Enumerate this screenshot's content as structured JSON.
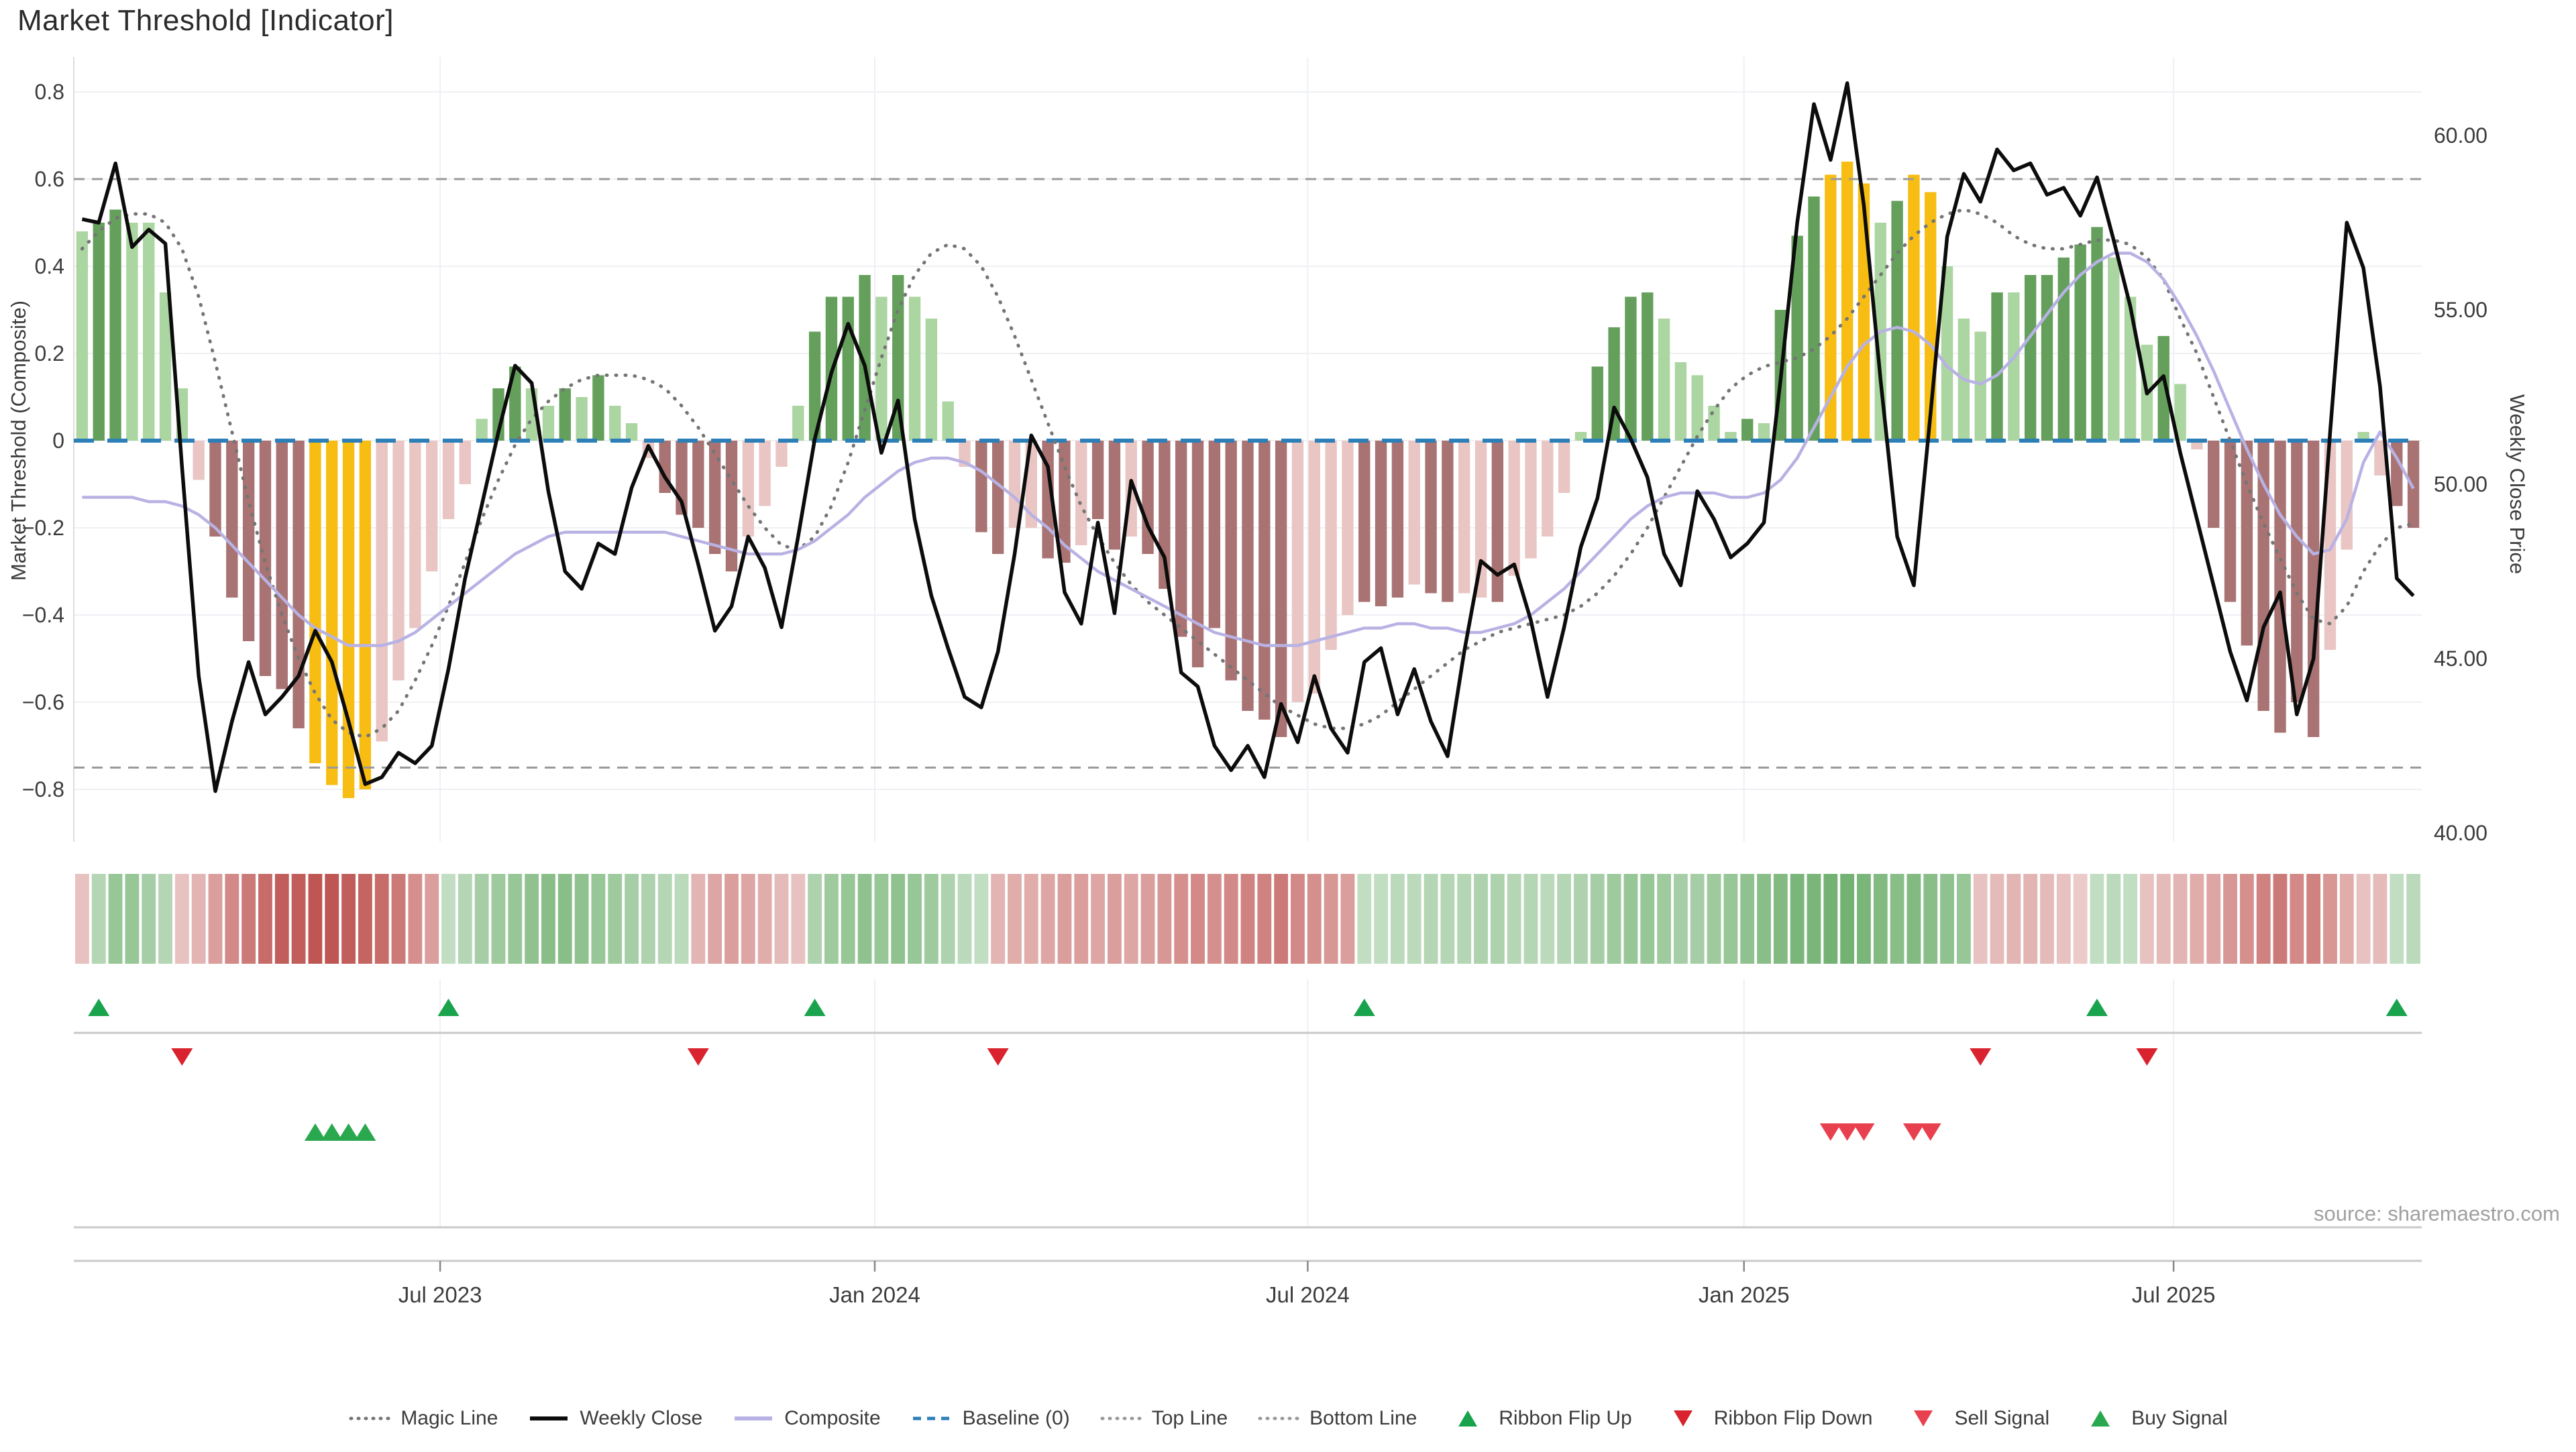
{
  "page": {
    "title": "Market Threshold [Indicator]",
    "source": "source: sharemaestro.com"
  },
  "chart_data": {
    "type": "bar",
    "title": "Market Threshold [Indicator]",
    "xlabel": "",
    "ylabel_left": "Market Threshold (Composite)",
    "ylabel_right": "Weekly Close Price",
    "grid": true,
    "legend_position": "bottom-center",
    "left_axis": {
      "ticks": [
        "0.8",
        "0.6",
        "0.4",
        "0.2",
        "0",
        "−0.2",
        "−0.4",
        "−0.6",
        "−0.8"
      ],
      "tick_values": [
        0.8,
        0.6,
        0.4,
        0.2,
        0,
        -0.2,
        -0.4,
        -0.6,
        -0.8
      ],
      "range": [
        -0.92,
        0.88
      ]
    },
    "right_axis": {
      "ticks": [
        "60.00",
        "55.00",
        "50.00",
        "45.00",
        "40.00"
      ],
      "tick_values": [
        60,
        55,
        50,
        45,
        40
      ],
      "price_at_zero_composite": 51.25,
      "price_per_composite_unit": 12.5
    },
    "x_axis": {
      "tick_labels": [
        "Jul 2023",
        "Jan 2024",
        "Jul 2024",
        "Jan 2025",
        "Jul 2025"
      ],
      "tick_week_positions": [
        21.5,
        47.6,
        73.6,
        99.8,
        125.6
      ]
    },
    "reference_lines": {
      "baseline": 0,
      "top_line": 0.6,
      "bottom_line": -0.75
    },
    "weeks": 141,
    "series": [
      {
        "name": "Composite Bars",
        "type": "bar",
        "values": [
          0.48,
          0.5,
          0.53,
          0.5,
          0.5,
          0.34,
          0.12,
          -0.09,
          -0.22,
          -0.36,
          -0.46,
          -0.54,
          -0.57,
          -0.66,
          -0.74,
          -0.79,
          -0.82,
          -0.8,
          -0.69,
          -0.55,
          -0.43,
          -0.3,
          -0.18,
          -0.1,
          0.05,
          0.12,
          0.17,
          0.12,
          0.08,
          0.12,
          0.1,
          0.15,
          0.08,
          0.04,
          -0.04,
          -0.12,
          -0.17,
          -0.2,
          -0.26,
          -0.3,
          -0.22,
          -0.15,
          -0.06,
          0.08,
          0.25,
          0.33,
          0.33,
          0.38,
          0.33,
          0.38,
          0.33,
          0.28,
          0.09,
          -0.06,
          -0.21,
          -0.26,
          -0.2,
          -0.2,
          -0.27,
          -0.28,
          -0.24,
          -0.18,
          -0.25,
          -0.22,
          -0.26,
          -0.34,
          -0.45,
          -0.52,
          -0.43,
          -0.55,
          -0.62,
          -0.64,
          -0.68,
          -0.6,
          -0.58,
          -0.48,
          -0.4,
          -0.37,
          -0.38,
          -0.36,
          -0.33,
          -0.35,
          -0.37,
          -0.35,
          -0.36,
          -0.37,
          -0.31,
          -0.27,
          -0.22,
          -0.12,
          0.02,
          0.17,
          0.26,
          0.33,
          0.34,
          0.28,
          0.18,
          0.15,
          0.08,
          0.02,
          0.05,
          0.04,
          0.3,
          0.47,
          0.56,
          0.61,
          0.64,
          0.59,
          0.5,
          0.55,
          0.61,
          0.57,
          0.4,
          0.28,
          0.25,
          0.34,
          0.34,
          0.38,
          0.38,
          0.42,
          0.45,
          0.49,
          0.42,
          0.33,
          0.22,
          0.24,
          0.13,
          -0.02,
          -0.2,
          -0.37,
          -0.47,
          -0.62,
          -0.67,
          -0.6,
          -0.68,
          -0.48,
          -0.25,
          0.02,
          -0.08,
          -0.15,
          -0.2
        ],
        "color_keys": [
          "lg",
          "dg",
          "dg",
          "lg",
          "lg",
          "lg",
          "lg",
          "lp",
          "dr",
          "dr",
          "dr",
          "dr",
          "dr",
          "dr",
          "Y",
          "Y",
          "Y",
          "Y",
          "lp",
          "lp",
          "lp",
          "lp",
          "lp",
          "lp",
          "lg",
          "dg",
          "dg",
          "lg",
          "lg",
          "dg",
          "lg",
          "dg",
          "lg",
          "lg",
          "lp",
          "dr",
          "dr",
          "dr",
          "dr",
          "dr",
          "lp",
          "lp",
          "lp",
          "lg",
          "dg",
          "dg",
          "dg",
          "dg",
          "lg",
          "dg",
          "lg",
          "lg",
          "lg",
          "lp",
          "dr",
          "dr",
          "lp",
          "lp",
          "dr",
          "dr",
          "lp",
          "dr",
          "dr",
          "lp",
          "dr",
          "dr",
          "dr",
          "dr",
          "dr",
          "dr",
          "dr",
          "dr",
          "dr",
          "lp",
          "lp",
          "lp",
          "lp",
          "dr",
          "dr",
          "dr",
          "lp",
          "dr",
          "dr",
          "lp",
          "lp",
          "dr",
          "lp",
          "lp",
          "lp",
          "lp",
          "lg",
          "dg",
          "dg",
          "dg",
          "dg",
          "lg",
          "lg",
          "lg",
          "lg",
          "lg",
          "dg",
          "lg",
          "dg",
          "dg",
          "dg",
          "Y",
          "Y",
          "Y",
          "lg",
          "dg",
          "Y",
          "Y",
          "lg",
          "lg",
          "lg",
          "dg",
          "lg",
          "dg",
          "dg",
          "dg",
          "dg",
          "dg",
          "lg",
          "lg",
          "lg",
          "dg",
          "lg",
          "lp",
          "dr",
          "dr",
          "dr",
          "dr",
          "dr",
          "dr",
          "dr",
          "lp",
          "lp",
          "lg",
          "lp",
          "dr",
          "dr"
        ]
      },
      {
        "name": "Weekly Close",
        "type": "line",
        "axis": "price",
        "values": [
          57.6,
          57.5,
          59.2,
          56.8,
          57.3,
          56.9,
          50.5,
          44.5,
          41.2,
          43.2,
          44.9,
          43.4,
          43.9,
          44.5,
          45.8,
          44.9,
          43.2,
          41.4,
          41.6,
          42.3,
          42.0,
          42.5,
          44.7,
          47.3,
          49.4,
          51.5,
          53.4,
          52.9,
          49.8,
          47.5,
          47.0,
          48.3,
          48.0,
          49.9,
          51.1,
          50.2,
          49.5,
          47.7,
          45.8,
          46.5,
          48.5,
          47.6,
          45.9,
          48.5,
          51.3,
          53.2,
          54.6,
          53.4,
          50.9,
          52.4,
          49.0,
          46.8,
          45.3,
          43.9,
          43.6,
          45.2,
          48.0,
          51.4,
          50.5,
          46.9,
          46.0,
          48.9,
          46.3,
          50.1,
          48.8,
          47.9,
          44.6,
          44.2,
          42.5,
          41.8,
          42.5,
          41.6,
          43.7,
          42.6,
          44.5,
          43.0,
          42.3,
          44.9,
          45.3,
          43.4,
          44.7,
          43.2,
          42.2,
          45.2,
          47.8,
          47.4,
          47.7,
          46.1,
          43.9,
          45.9,
          48.2,
          49.6,
          52.2,
          51.3,
          50.2,
          48.0,
          47.1,
          49.8,
          49.0,
          47.9,
          48.3,
          48.9,
          53.0,
          57.5,
          60.9,
          59.3,
          61.5,
          58.0,
          53.0,
          48.5,
          47.1,
          52.0,
          57.1,
          58.9,
          58.1,
          59.6,
          59.0,
          59.2,
          58.3,
          58.5,
          57.7,
          58.8,
          57.0,
          55.1,
          52.6,
          53.1,
          50.9,
          49.0,
          47.1,
          45.2,
          43.8,
          45.9,
          46.9,
          43.4,
          45.0,
          51.5,
          57.5,
          56.2,
          52.8,
          47.3,
          46.8
        ]
      },
      {
        "name": "Composite",
        "type": "line",
        "values": [
          -0.13,
          -0.13,
          -0.13,
          -0.13,
          -0.14,
          -0.14,
          -0.15,
          -0.17,
          -0.2,
          -0.24,
          -0.28,
          -0.32,
          -0.36,
          -0.4,
          -0.43,
          -0.45,
          -0.47,
          -0.47,
          -0.47,
          -0.46,
          -0.44,
          -0.41,
          -0.38,
          -0.35,
          -0.32,
          -0.29,
          -0.26,
          -0.24,
          -0.22,
          -0.21,
          -0.21,
          -0.21,
          -0.21,
          -0.21,
          -0.21,
          -0.21,
          -0.22,
          -0.23,
          -0.24,
          -0.25,
          -0.26,
          -0.26,
          -0.26,
          -0.25,
          -0.23,
          -0.2,
          -0.17,
          -0.13,
          -0.1,
          -0.07,
          -0.05,
          -0.04,
          -0.04,
          -0.05,
          -0.07,
          -0.1,
          -0.13,
          -0.17,
          -0.2,
          -0.24,
          -0.27,
          -0.3,
          -0.32,
          -0.34,
          -0.36,
          -0.38,
          -0.4,
          -0.42,
          -0.44,
          -0.45,
          -0.46,
          -0.47,
          -0.47,
          -0.47,
          -0.46,
          -0.45,
          -0.44,
          -0.43,
          -0.43,
          -0.42,
          -0.42,
          -0.43,
          -0.43,
          -0.44,
          -0.44,
          -0.43,
          -0.42,
          -0.4,
          -0.37,
          -0.34,
          -0.3,
          -0.26,
          -0.22,
          -0.18,
          -0.15,
          -0.13,
          -0.12,
          -0.12,
          -0.12,
          -0.13,
          -0.13,
          -0.12,
          -0.09,
          -0.04,
          0.03,
          0.1,
          0.17,
          0.22,
          0.25,
          0.26,
          0.25,
          0.22,
          0.17,
          0.14,
          0.13,
          0.15,
          0.19,
          0.24,
          0.29,
          0.34,
          0.38,
          0.41,
          0.43,
          0.43,
          0.41,
          0.37,
          0.31,
          0.24,
          0.16,
          0.07,
          -0.02,
          -0.1,
          -0.17,
          -0.22,
          -0.26,
          -0.25,
          -0.18,
          -0.05,
          0.02,
          -0.04,
          -0.11
        ]
      },
      {
        "name": "Magic Line",
        "type": "line",
        "style": "dotted",
        "values": [
          0.44,
          0.48,
          0.51,
          0.52,
          0.52,
          0.5,
          0.44,
          0.33,
          0.18,
          0.02,
          -0.14,
          -0.28,
          -0.4,
          -0.5,
          -0.58,
          -0.64,
          -0.67,
          -0.68,
          -0.66,
          -0.62,
          -0.55,
          -0.47,
          -0.38,
          -0.28,
          -0.18,
          -0.09,
          -0.01,
          0.05,
          0.09,
          0.12,
          0.14,
          0.15,
          0.15,
          0.15,
          0.14,
          0.12,
          0.08,
          0.03,
          -0.03,
          -0.09,
          -0.15,
          -0.2,
          -0.24,
          -0.25,
          -0.22,
          -0.15,
          -0.05,
          0.07,
          0.19,
          0.3,
          0.38,
          0.43,
          0.45,
          0.44,
          0.4,
          0.33,
          0.24,
          0.14,
          0.04,
          -0.06,
          -0.15,
          -0.22,
          -0.28,
          -0.33,
          -0.37,
          -0.4,
          -0.43,
          -0.46,
          -0.49,
          -0.52,
          -0.55,
          -0.58,
          -0.61,
          -0.63,
          -0.65,
          -0.66,
          -0.66,
          -0.65,
          -0.63,
          -0.6,
          -0.57,
          -0.54,
          -0.51,
          -0.48,
          -0.46,
          -0.44,
          -0.43,
          -0.42,
          -0.41,
          -0.4,
          -0.38,
          -0.35,
          -0.31,
          -0.26,
          -0.2,
          -0.13,
          -0.06,
          0.01,
          0.07,
          0.12,
          0.15,
          0.17,
          0.18,
          0.19,
          0.21,
          0.24,
          0.28,
          0.33,
          0.38,
          0.43,
          0.47,
          0.5,
          0.52,
          0.53,
          0.52,
          0.5,
          0.47,
          0.45,
          0.44,
          0.44,
          0.45,
          0.46,
          0.46,
          0.45,
          0.42,
          0.37,
          0.28,
          0.2,
          0.1,
          0.0,
          -0.1,
          -0.19,
          -0.27,
          -0.35,
          -0.41,
          -0.42,
          -0.38,
          -0.3,
          -0.24,
          -0.2,
          -0.19
        ]
      }
    ],
    "ribbon": {
      "values": [
        -0.2,
        0.3,
        0.5,
        0.5,
        0.4,
        0.3,
        -0.2,
        -0.3,
        -0.45,
        -0.6,
        -0.7,
        -0.8,
        -0.9,
        -0.9,
        -0.95,
        -0.95,
        -0.9,
        -0.85,
        -0.8,
        -0.7,
        -0.55,
        -0.45,
        0.2,
        0.3,
        0.4,
        0.45,
        0.5,
        0.55,
        0.6,
        0.6,
        0.55,
        0.5,
        0.45,
        0.4,
        0.35,
        0.3,
        0.25,
        -0.3,
        -0.4,
        -0.45,
        -0.4,
        -0.35,
        -0.25,
        -0.2,
        0.35,
        0.45,
        0.5,
        0.55,
        0.5,
        0.55,
        0.5,
        0.45,
        0.35,
        0.25,
        0.2,
        -0.3,
        -0.35,
        -0.35,
        -0.4,
        -0.45,
        -0.45,
        -0.4,
        -0.45,
        -0.4,
        -0.45,
        -0.5,
        -0.55,
        -0.6,
        -0.55,
        -0.6,
        -0.65,
        -0.65,
        -0.7,
        -0.6,
        -0.55,
        -0.5,
        -0.45,
        0.2,
        0.2,
        0.25,
        0.25,
        0.3,
        0.3,
        0.3,
        0.35,
        0.35,
        0.3,
        0.3,
        0.25,
        0.3,
        0.35,
        0.4,
        0.45,
        0.5,
        0.5,
        0.45,
        0.4,
        0.4,
        0.45,
        0.5,
        0.55,
        0.6,
        0.65,
        0.7,
        0.7,
        0.75,
        0.75,
        0.7,
        0.65,
        0.6,
        0.65,
        0.6,
        0.55,
        0.5,
        -0.2,
        -0.25,
        -0.3,
        -0.3,
        -0.25,
        -0.2,
        -0.15,
        0.2,
        0.25,
        0.2,
        -0.2,
        -0.25,
        -0.3,
        -0.35,
        -0.4,
        -0.5,
        -0.55,
        -0.65,
        -0.7,
        -0.6,
        -0.65,
        -0.5,
        -0.35,
        -0.2,
        -0.25,
        0.2,
        0.25
      ]
    },
    "signals": {
      "ribbon_flip_up_weeks": [
        1,
        22,
        44,
        77,
        121,
        139
      ],
      "ribbon_flip_down_weeks": [
        6,
        37,
        55,
        114,
        124
      ],
      "sell_signal_weeks": [
        105,
        106,
        107,
        110,
        111
      ],
      "buy_signal_weeks": [
        14,
        15,
        16,
        17
      ]
    },
    "legend": [
      {
        "label": "Magic Line",
        "marker": "dotted-line",
        "color": "#757575"
      },
      {
        "label": "Weekly Close",
        "marker": "solid-line",
        "color": "#0c0c0c"
      },
      {
        "label": "Composite",
        "marker": "solid-line",
        "color": "#b8b2e4"
      },
      {
        "label": "Baseline (0)",
        "marker": "dashed-line",
        "color": "#2d7fb8"
      },
      {
        "label": "Top Line",
        "marker": "dotted-line",
        "color": "#9a9a9a"
      },
      {
        "label": "Bottom Line",
        "marker": "dotted-line",
        "color": "#9a9a9a"
      },
      {
        "label": "Ribbon Flip Up",
        "marker": "triangle-up",
        "color": "#1aa34d"
      },
      {
        "label": "Ribbon Flip Down",
        "marker": "triangle-down",
        "color": "#d9232e"
      },
      {
        "label": "Sell Signal",
        "marker": "triangle-down",
        "color": "#e8404f"
      },
      {
        "label": "Buy Signal",
        "marker": "triangle-up",
        "color": "#2aa84f"
      }
    ],
    "colors": {
      "bar_light_green": "#abd5a1",
      "bar_dark_green": "#64a05c",
      "bar_light_red": "#e9c6c3",
      "bar_dark_red": "#a87372",
      "bar_extreme_yellow": "#f7bd13",
      "weekly_close": "#0c0c0c",
      "composite_line": "#b8b2e4",
      "magic_line": "#757575",
      "baseline": "#2d7fb8",
      "top_bottom_line": "#9a9a9a",
      "ribbon_green": "#4f9e4f",
      "ribbon_red": "#bc4f4c",
      "grid": "#eef0f4",
      "axis_text": "#3c3c3c",
      "panel_line": "#c9c9c9"
    }
  }
}
